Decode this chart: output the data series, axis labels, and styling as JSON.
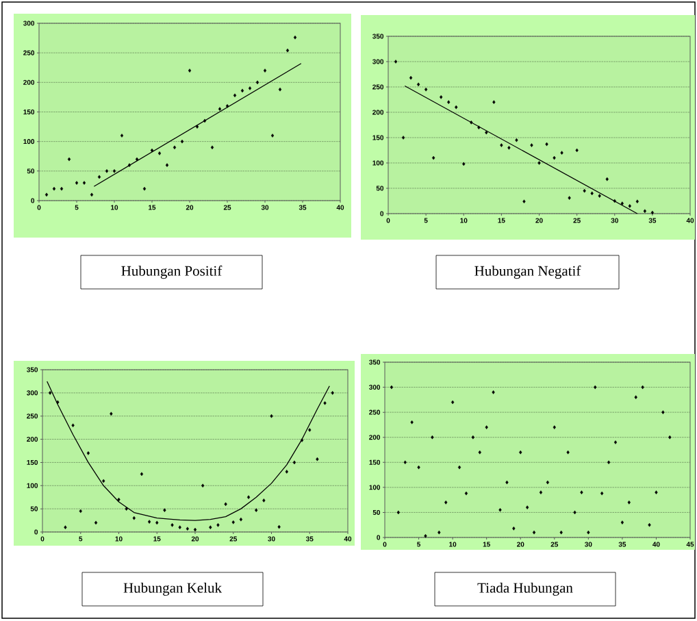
{
  "chart_data": [
    {
      "type": "scatter",
      "title": "Hubungan Positif",
      "xlim": [
        0,
        40
      ],
      "ylim": [
        0,
        300
      ],
      "xticks": [
        0,
        5,
        10,
        15,
        20,
        25,
        30,
        35,
        40
      ],
      "yticks": [
        0,
        50,
        100,
        150,
        200,
        250,
        300
      ],
      "grid": "y",
      "series": [
        {
          "marker": "diamond",
          "color": "#000000",
          "x": [
            1,
            2,
            3,
            4,
            5,
            6,
            7,
            8,
            9,
            10,
            11,
            12,
            13,
            14,
            15,
            16,
            17,
            18,
            19,
            20,
            21,
            22,
            23,
            24,
            25,
            26,
            27,
            28,
            29,
            30,
            31,
            32,
            33,
            34
          ],
          "values": [
            10,
            20,
            20,
            70,
            30,
            30,
            10,
            40,
            50,
            50,
            110,
            60,
            70,
            20,
            85,
            80,
            60,
            90,
            100,
            220,
            125,
            135,
            90,
            155,
            160,
            178,
            186,
            190,
            200,
            220,
            110,
            188,
            254,
            276
          ]
        },
        {
          "type": "line",
          "marker": "none",
          "color": "#000000",
          "x": [
            7.3,
            34.8
          ],
          "values": [
            24,
            232
          ]
        }
      ]
    },
    {
      "type": "scatter",
      "title": "Hubungan Negatif",
      "xlim": [
        0,
        40
      ],
      "ylim": [
        0,
        350
      ],
      "xticks": [
        0,
        5,
        10,
        15,
        20,
        25,
        30,
        35,
        40
      ],
      "yticks": [
        0,
        50,
        100,
        150,
        200,
        250,
        300,
        350
      ],
      "grid": "y",
      "series": [
        {
          "marker": "diamond",
          "color": "#000000",
          "x": [
            1,
            2,
            3,
            4,
            5,
            6,
            7,
            8,
            9,
            10,
            11,
            12,
            13,
            14,
            15,
            16,
            17,
            18,
            19,
            20,
            21,
            22,
            23,
            24,
            25,
            26,
            27,
            28,
            29,
            30,
            31,
            32,
            33,
            34,
            35
          ],
          "values": [
            300,
            150,
            268,
            255,
            245,
            110,
            230,
            220,
            210,
            98,
            180,
            170,
            160,
            220,
            135,
            130,
            145,
            24,
            135,
            100,
            137,
            110,
            120,
            31,
            125,
            45,
            40,
            35,
            68,
            25,
            20,
            15,
            24,
            5,
            2
          ]
        },
        {
          "type": "line",
          "marker": "none",
          "color": "#000000",
          "x": [
            2.2,
            33
          ],
          "values": [
            252,
            0
          ]
        }
      ]
    },
    {
      "type": "scatter",
      "title": "Hubungan Keluk",
      "xlim": [
        0,
        40
      ],
      "ylim": [
        0,
        350
      ],
      "xticks": [
        0,
        5,
        10,
        15,
        20,
        25,
        30,
        35,
        40
      ],
      "yticks": [
        0,
        50,
        100,
        150,
        200,
        250,
        300,
        350
      ],
      "grid": "y",
      "series": [
        {
          "marker": "diamond",
          "color": "#000000",
          "x": [
            1,
            2,
            3,
            4,
            5,
            6,
            7,
            8,
            9,
            10,
            11,
            12,
            13,
            14,
            15,
            16,
            17,
            18,
            19,
            20,
            21,
            22,
            23,
            24,
            25,
            26,
            27,
            28,
            29,
            30,
            31,
            32,
            33,
            34,
            35,
            36,
            37,
            38
          ],
          "values": [
            300,
            280,
            10,
            230,
            45,
            170,
            20,
            110,
            255,
            70,
            50,
            30,
            125,
            22,
            20,
            47,
            15,
            10,
            7,
            5,
            100,
            10,
            15,
            60,
            21,
            27,
            75,
            47,
            68,
            250,
            11,
            130,
            150,
            198,
            220,
            157,
            278,
            300
          ]
        },
        {
          "type": "line",
          "marker": "none",
          "color": "#000000",
          "x": [
            0.6,
            2,
            4,
            6,
            8,
            10,
            12,
            15,
            18,
            20,
            22,
            24,
            26,
            28,
            30,
            32,
            34,
            36,
            37.6
          ],
          "values": [
            325,
            275,
            210,
            150,
            100,
            65,
            42,
            30,
            26,
            25,
            27,
            33,
            50,
            75,
            105,
            145,
            200,
            265,
            315
          ]
        }
      ]
    },
    {
      "type": "scatter",
      "title": "Tiada Hubungan",
      "xlim": [
        0,
        45
      ],
      "ylim": [
        0,
        350
      ],
      "xticks": [
        0,
        5,
        10,
        15,
        20,
        25,
        30,
        35,
        40,
        45
      ],
      "yticks": [
        0,
        50,
        100,
        150,
        200,
        250,
        300,
        350
      ],
      "grid": "y",
      "series": [
        {
          "marker": "diamond",
          "color": "#000000",
          "x": [
            1,
            2,
            3,
            4,
            5,
            6,
            7,
            8,
            9,
            10,
            11,
            12,
            13,
            14,
            15,
            16,
            17,
            18,
            19,
            20,
            21,
            22,
            23,
            24,
            25,
            26,
            27,
            28,
            29,
            30,
            31,
            32,
            33,
            34,
            35,
            36,
            37,
            38,
            39,
            40,
            41,
            42
          ],
          "values": [
            300,
            50,
            150,
            230,
            140,
            3,
            200,
            10,
            70,
            270,
            140,
            88,
            200,
            170,
            220,
            290,
            55,
            110,
            18,
            170,
            60,
            10,
            90,
            110,
            220,
            10,
            170,
            50,
            90,
            10,
            300,
            88,
            150,
            190,
            30,
            70,
            280,
            300,
            25,
            90,
            250,
            200
          ]
        }
      ]
    }
  ]
}
